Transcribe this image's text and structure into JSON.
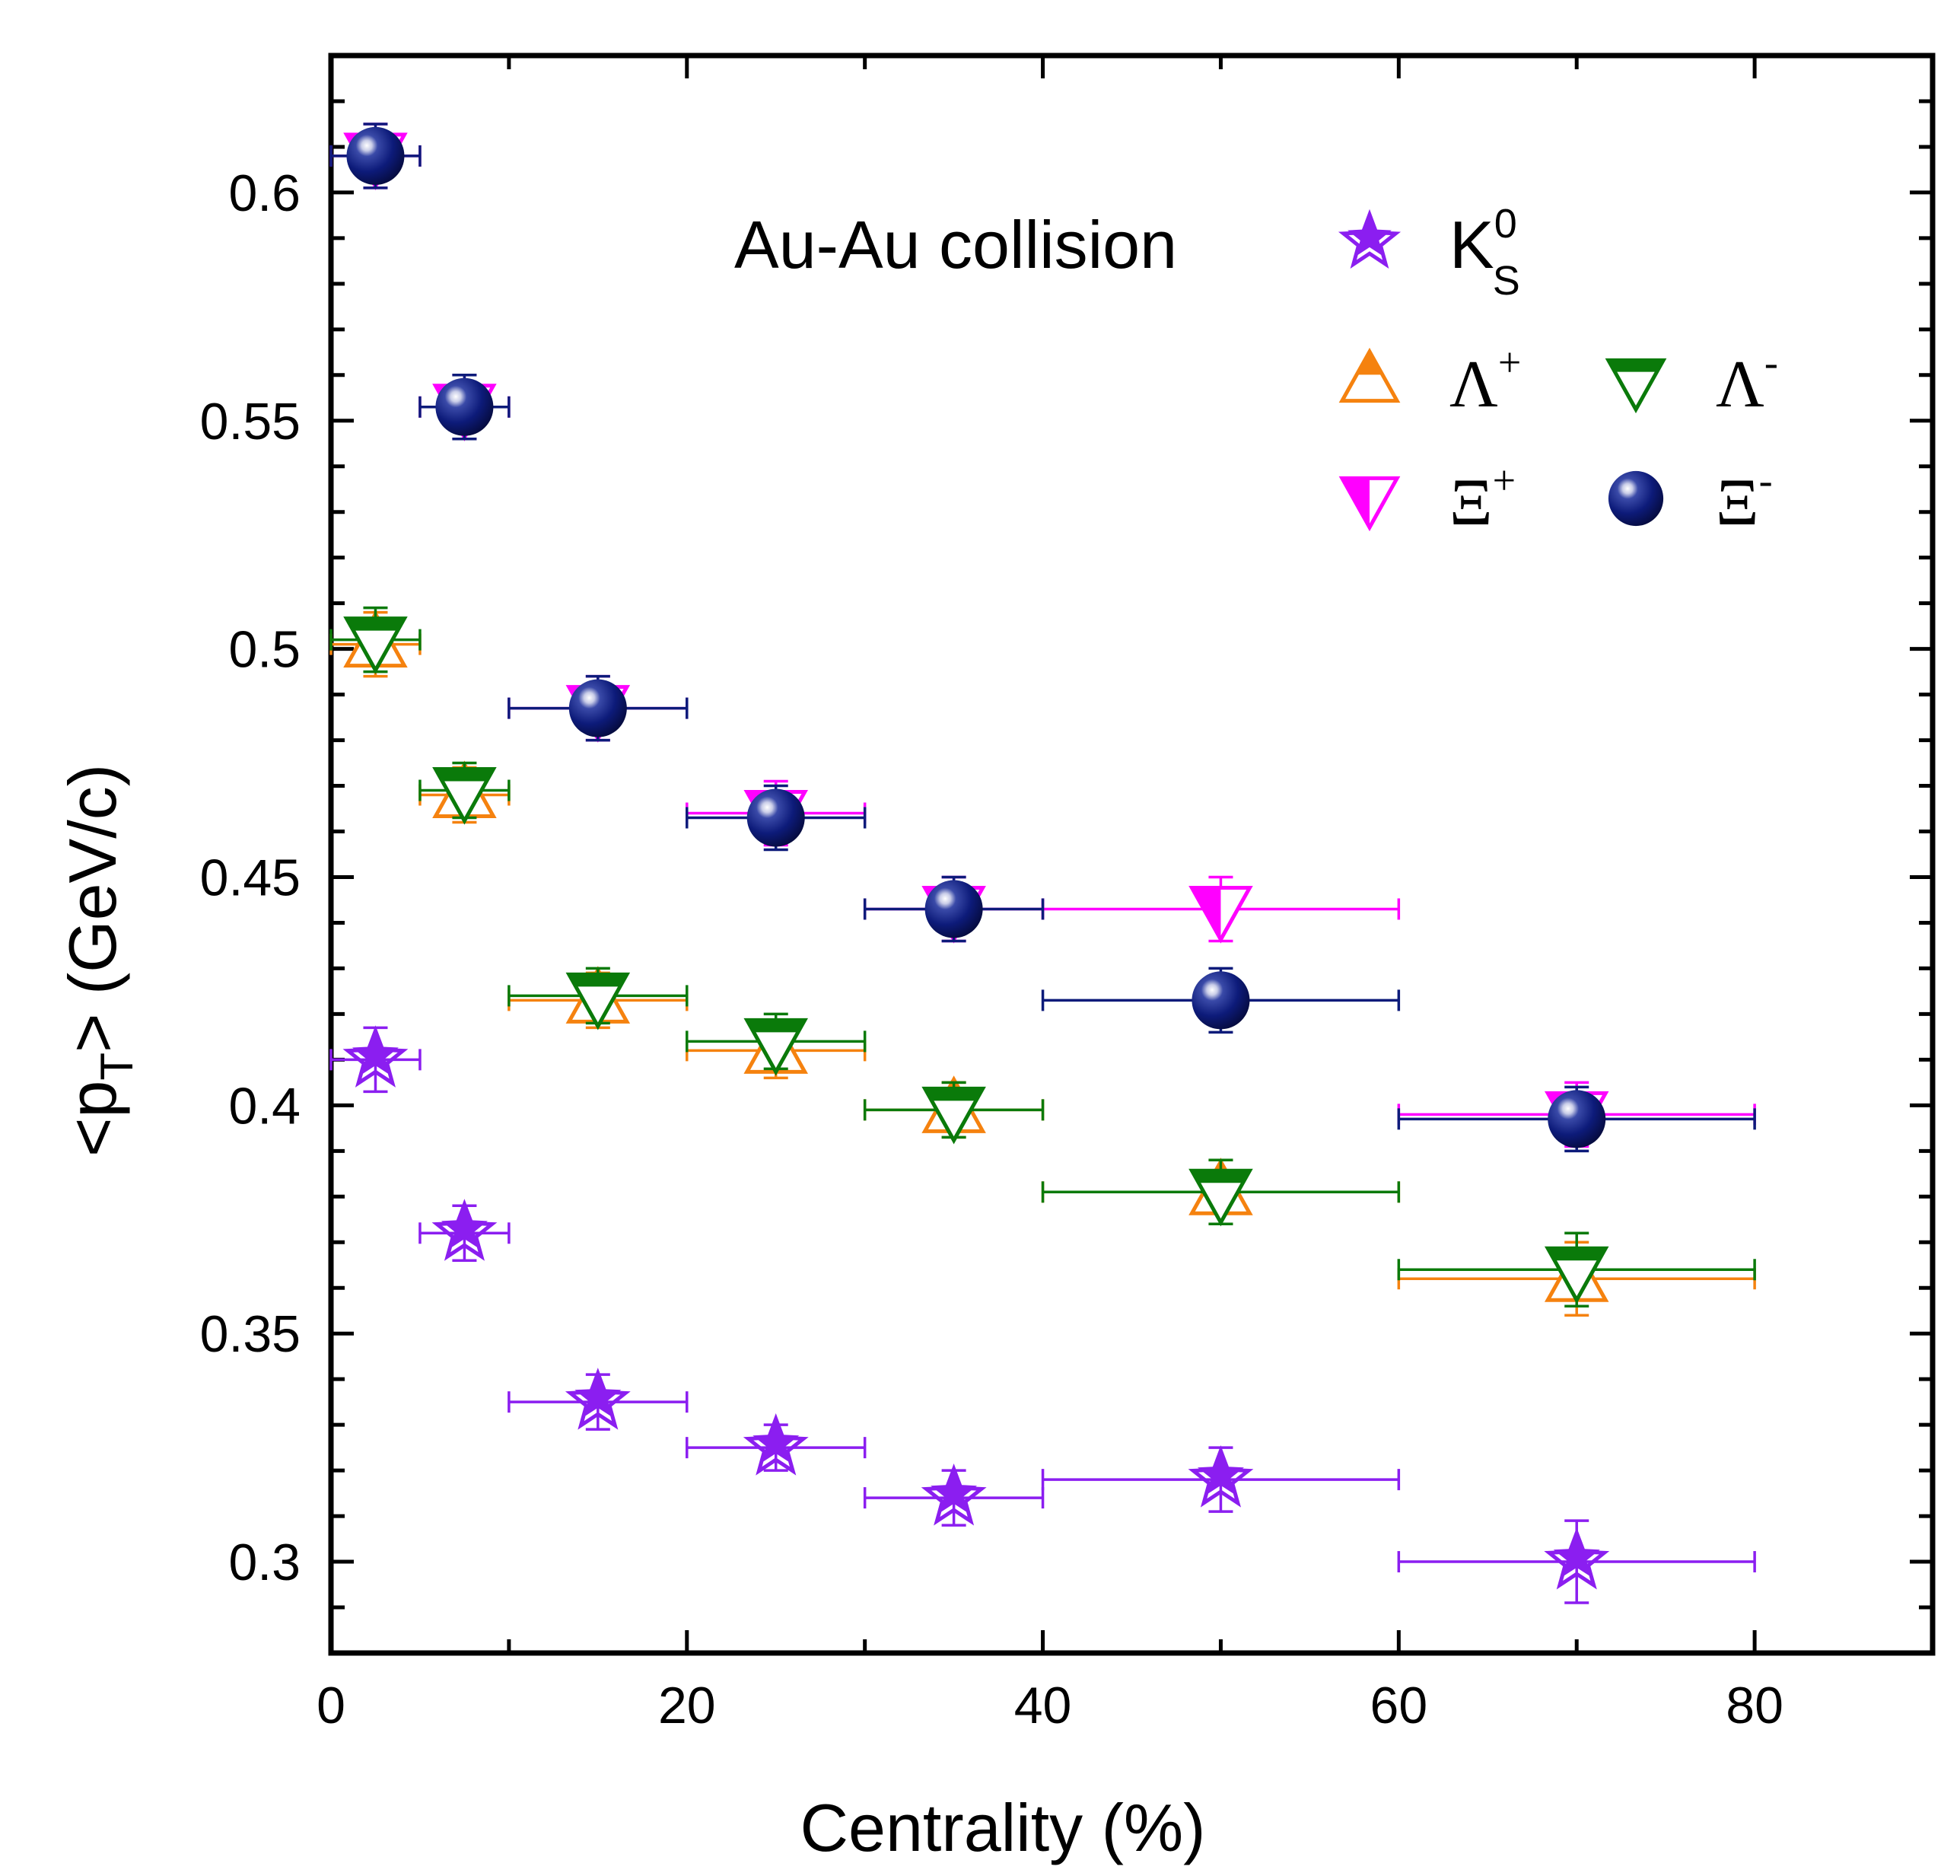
{
  "chart_data": {
    "type": "scatter",
    "title": "Au-Au collision",
    "xlabel": "Centrality (%)",
    "ylabel": "<p_T> (GeV/c)",
    "ylabel_parts": [
      "<p",
      "T",
      "> (GeV/c)"
    ],
    "xlim": [
      0,
      90
    ],
    "ylim": [
      0.28,
      0.63
    ],
    "x_ticks": [
      0,
      20,
      40,
      60,
      80
    ],
    "x_tick_labels": [
      "0",
      "20",
      "40",
      "60",
      "80"
    ],
    "y_ticks": [
      0.3,
      0.35,
      0.4,
      0.45,
      0.5,
      0.55,
      0.6
    ],
    "y_tick_labels": [
      "0.3",
      "0.35",
      "0.4",
      "0.45",
      "0.5",
      "0.55",
      "0.6"
    ],
    "x_bins": [
      [
        0,
        5
      ],
      [
        5,
        10
      ],
      [
        10,
        20
      ],
      [
        20,
        30
      ],
      [
        30,
        40
      ],
      [
        40,
        60
      ],
      [
        60,
        80
      ]
    ],
    "x_centers": [
      2.5,
      7.5,
      15,
      25,
      35,
      50,
      70
    ],
    "series": [
      {
        "name": "K0S",
        "legend_main": "K",
        "legend_sup": "0",
        "legend_sub": "S",
        "marker": "star",
        "color": "#8b1ef0",
        "values": [
          0.41,
          0.372,
          0.335,
          0.325,
          0.314,
          0.318,
          0.3
        ],
        "errors": [
          0.007,
          0.006,
          0.006,
          0.005,
          0.006,
          0.007,
          0.009
        ]
      },
      {
        "name": "Λ+",
        "legend_main": "Λ",
        "legend_sup": "+",
        "marker": "triangle-up",
        "color": "#f5820f",
        "values": [
          0.501,
          0.468,
          0.423,
          0.412,
          0.399,
          0.381,
          0.362
        ],
        "errors": [
          0.007,
          0.006,
          0.006,
          0.006,
          0.006,
          0.007,
          0.008
        ]
      },
      {
        "name": "Λ-",
        "legend_main": "Λ",
        "legend_sup": "-",
        "marker": "triangle-down",
        "color": "#0a7a0a",
        "values": [
          0.502,
          0.469,
          0.424,
          0.414,
          0.399,
          0.381,
          0.364
        ],
        "errors": [
          0.007,
          0.006,
          0.006,
          0.006,
          0.006,
          0.007,
          0.008
        ]
      },
      {
        "name": "Ξ+",
        "legend_main": "Ξ",
        "legend_sup": "+",
        "marker": "triangle-down-half",
        "color": "#ff00ff",
        "values": [
          0.608,
          0.553,
          0.487,
          0.464,
          0.443,
          0.443,
          0.398
        ],
        "errors": [
          0.007,
          0.007,
          0.007,
          0.007,
          0.007,
          0.007,
          0.007
        ]
      },
      {
        "name": "Ξ-",
        "legend_main": "Ξ",
        "legend_sup": "-",
        "marker": "sphere",
        "color": "#0d1b7a",
        "values": [
          0.608,
          0.553,
          0.487,
          0.463,
          0.443,
          0.423,
          0.397
        ],
        "errors": [
          0.007,
          0.007,
          0.007,
          0.007,
          0.007,
          0.007,
          0.007
        ]
      }
    ],
    "grid": false,
    "legend_position": "top-right"
  }
}
